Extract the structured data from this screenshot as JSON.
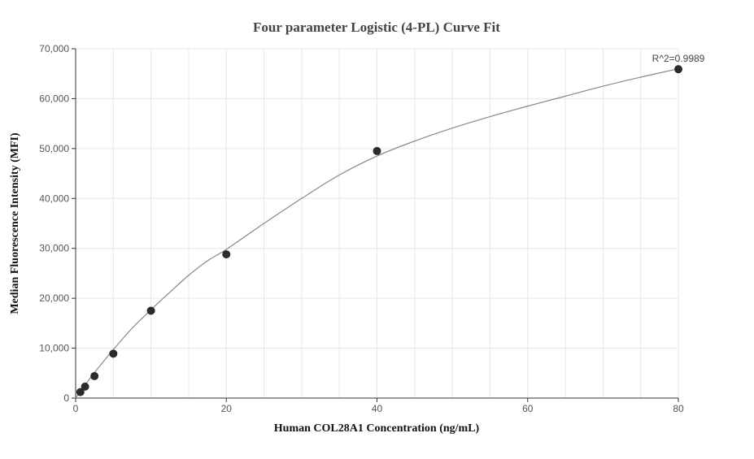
{
  "chart_data": {
    "type": "scatter",
    "title": "Four parameter Logistic (4-PL) Curve Fit",
    "xlabel": "Human COL28A1 Concentration (ng/mL)",
    "ylabel": "Median Fluorescence Intensity (MFI)",
    "xlim": [
      0,
      80
    ],
    "ylim": [
      0,
      70000
    ],
    "x_ticks": [
      0,
      20,
      40,
      60,
      80
    ],
    "y_ticks": [
      0,
      10000,
      20000,
      30000,
      40000,
      50000,
      60000,
      70000
    ],
    "x_tick_labels": [
      "0",
      "20",
      "40",
      "60",
      "80"
    ],
    "y_tick_labels": [
      "0",
      "10,000",
      "20,000",
      "30,000",
      "40,000",
      "50,000",
      "60,000",
      "70,000"
    ],
    "grid": true,
    "points": {
      "x": [
        0.625,
        1.25,
        2.5,
        5,
        10,
        20,
        40,
        80
      ],
      "y": [
        1200,
        2300,
        4400,
        8900,
        17500,
        28800,
        49500,
        65900
      ]
    },
    "fit_curve": {
      "x": [
        0,
        0.625,
        1.25,
        2.5,
        5,
        7.5,
        10,
        12.5,
        15,
        17.5,
        20,
        25,
        30,
        35,
        40,
        45,
        50,
        55,
        60,
        65,
        70,
        75,
        80
      ],
      "y": [
        0,
        1300,
        2550,
        5100,
        9700,
        14000,
        17700,
        21200,
        24600,
        27500,
        29800,
        35000,
        40000,
        44700,
        48500,
        51500,
        54100,
        56400,
        58500,
        60500,
        62500,
        64300,
        66000
      ]
    },
    "annotation": "R^2=0.9989",
    "colors": {
      "point": "#2b2b2b",
      "curve": "#888888",
      "grid": "#e6e6ee",
      "axis": "#333333"
    }
  }
}
